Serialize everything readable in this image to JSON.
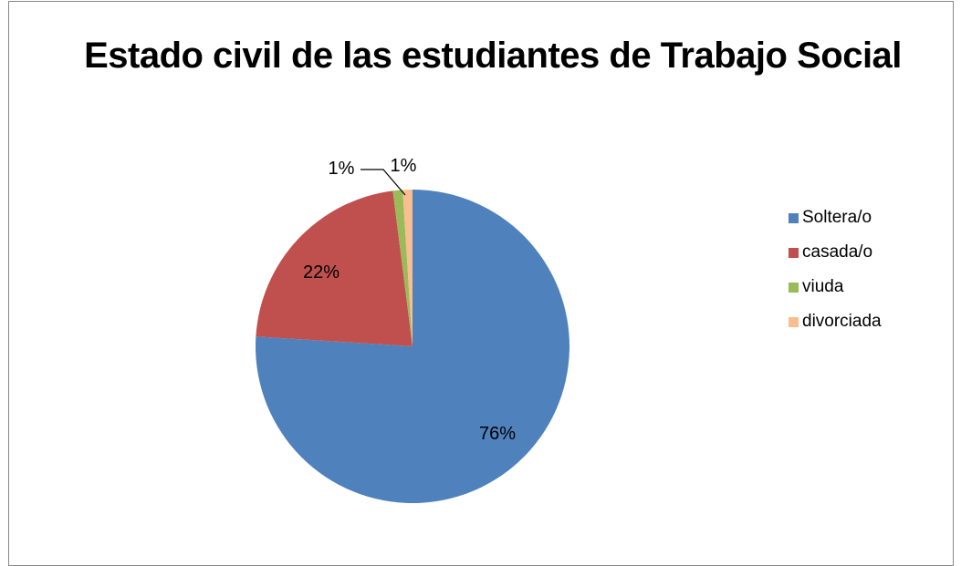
{
  "chart_data": {
    "type": "pie",
    "title": "Estado civil de las estudiantes de Trabajo Social",
    "categories": [
      "Soltera/o",
      "casada/o",
      "viuda",
      "divorciada"
    ],
    "values": [
      76,
      22,
      1,
      1
    ],
    "labels": [
      "76%",
      "22%",
      "1%",
      "1%"
    ],
    "colors": [
      "#4F81BD",
      "#C0504D",
      "#9BBB59",
      "#F9BE8F"
    ],
    "legend_position": "right"
  }
}
